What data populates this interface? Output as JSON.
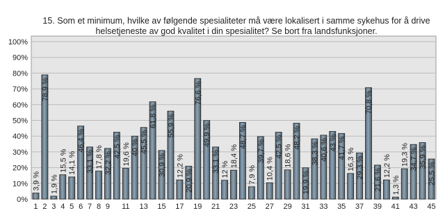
{
  "chart_data": {
    "type": "bar",
    "title": [
      "15. Som et minimum, hvilke av følgende spesialiteter må være lokalisert i samme sykehus for å drive",
      "helsetjeneste av god kvalitet i din spesialitet? Se bort fra landsfunksjoner."
    ],
    "categories": [
      1,
      2,
      3,
      4,
      5,
      6,
      7,
      8,
      9,
      null,
      11,
      null,
      13,
      null,
      15,
      null,
      17,
      null,
      19,
      null,
      21,
      null,
      23,
      null,
      25,
      null,
      27,
      null,
      29,
      null,
      31,
      null,
      33,
      null,
      35,
      null,
      37,
      null,
      39,
      null,
      41,
      null,
      43,
      null,
      45
    ],
    "values": [
      3.9,
      78.9,
      1.9,
      15.5,
      14.1,
      46.4,
      33.1,
      17.8,
      32.2,
      42.5,
      19.6,
      40,
      45.5,
      61.8,
      30.9,
      55.9,
      12.2,
      20.9,
      76.6,
      49.9,
      33.1,
      12,
      18.4,
      48.7,
      7.9,
      39.7,
      10.4,
      42.5,
      18.6,
      48.2,
      19.9,
      38.3,
      40.6,
      43,
      41.7,
      16.3,
      29.3,
      70.8,
      21.6,
      12.2,
      1.3,
      19.3,
      34.7,
      35.9,
      25.5
    ],
    "value_labels": [
      "3,9 %",
      "78,9 %",
      "1,9 %",
      "15,5 %",
      "14,1 %",
      "46,4 %",
      "33,1 %",
      "17,8 %",
      "32,2 %",
      "42,5 %",
      "19,6 %",
      "40 %",
      "45,5 %",
      "61,8 %",
      "30,9 %",
      "55,9 %",
      "12,2 %",
      "20,9 %",
      "76,6 %",
      "49,9 %",
      "33,1 %",
      "12 %",
      "18,4 %",
      "48,7 %",
      "7,9 %",
      "39,7 %",
      "10,4 %",
      "42,5 %",
      "18,6 %",
      "48,2 %",
      "19,9 %",
      "38,3 %",
      "40,6 %",
      "43 %",
      "41,7 %",
      "16,3 %",
      "29,3 %",
      "70,8 %",
      "21,6 %",
      "12,2 %",
      "1,3 %",
      "19,3 %",
      "34,7 %",
      "35,9 %",
      "25,5 %"
    ],
    "color": "#6e8391",
    "ylim": [
      0,
      100
    ],
    "yticks": [
      {
        "value": 0,
        "label": "0%"
      },
      {
        "value": 10,
        "label": "10%"
      },
      {
        "value": 20,
        "label": "20%"
      },
      {
        "value": 30,
        "label": "30%"
      },
      {
        "value": 40,
        "label": "40%"
      },
      {
        "value": 50,
        "label": "50%"
      },
      {
        "value": 60,
        "label": "60%"
      },
      {
        "value": 70,
        "label": "70%"
      },
      {
        "value": 80,
        "label": "80%"
      },
      {
        "value": 90,
        "label": "90%"
      },
      {
        "value": 100,
        "label": "100%"
      }
    ],
    "grid": true
  }
}
